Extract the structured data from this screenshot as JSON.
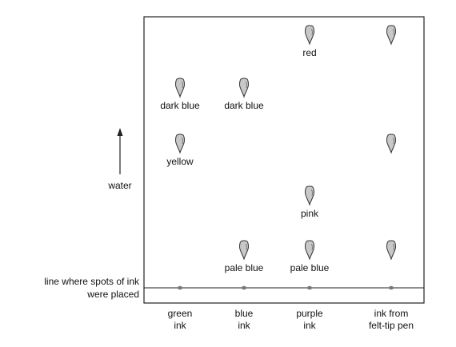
{
  "diagram": {
    "baseline_label_lines": [
      "line where spots of ink",
      "were placed"
    ],
    "water_label": "water",
    "colors": {
      "spot_fill": "#c8c8c8",
      "spot_stroke": "#333333",
      "line": "#222222",
      "origin_dot": "#777777"
    },
    "columns": [
      {
        "label_lines": [
          "green",
          "ink"
        ],
        "spots": [
          {
            "label": "dark blue",
            "level": 5
          },
          {
            "label": "yellow",
            "level": 4
          }
        ]
      },
      {
        "label_lines": [
          "blue",
          "ink"
        ],
        "spots": [
          {
            "label": "dark blue",
            "level": 5
          },
          {
            "label": "pale blue",
            "level": 1
          }
        ]
      },
      {
        "label_lines": [
          "purple",
          "ink"
        ],
        "spots": [
          {
            "label": "red",
            "level": 6
          },
          {
            "label": "pink",
            "level": 3
          },
          {
            "label": "pale blue",
            "level": 1
          }
        ]
      },
      {
        "label_lines": [
          "ink from",
          "felt-tip pen"
        ],
        "spots": [
          {
            "label": "",
            "level": 6
          },
          {
            "label": "",
            "level": 4
          },
          {
            "label": "",
            "level": 1
          }
        ]
      }
    ]
  }
}
